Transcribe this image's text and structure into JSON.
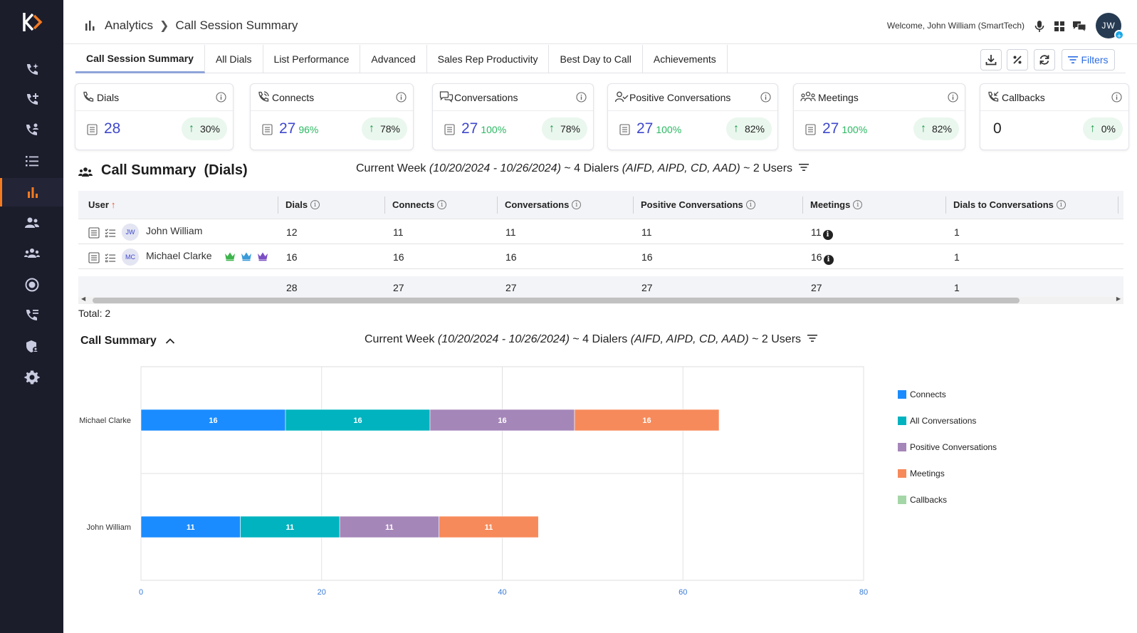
{
  "header": {
    "breadcrumb_root": "Analytics",
    "breadcrumb_page": "Call Session Summary",
    "welcome": "Welcome, John William (SmartTech)",
    "avatar_initials": "JW"
  },
  "tabs": [
    "Call Session Summary",
    "All Dials",
    "List Performance",
    "Advanced",
    "Sales Rep Productivity",
    "Best Day to Call",
    "Achievements"
  ],
  "toolbar": {
    "filters_label": "Filters"
  },
  "cards": [
    {
      "title": "Dials",
      "value": "28",
      "pct": "",
      "trend": "30%",
      "icon": "phone-icon"
    },
    {
      "title": "Connects",
      "value": "27",
      "pct": "96%",
      "trend": "78%",
      "icon": "phone-connect-icon"
    },
    {
      "title": "Conversations",
      "value": "27",
      "pct": "100%",
      "trend": "78%",
      "icon": "chat-bubbles-icon"
    },
    {
      "title": "Positive Conversations",
      "value": "27",
      "pct": "100%",
      "trend": "82%",
      "icon": "user-check-icon"
    },
    {
      "title": "Meetings",
      "value": "27",
      "pct": "100%",
      "trend": "82%",
      "icon": "meeting-group-icon"
    },
    {
      "title": "Callbacks",
      "value": "0",
      "pct": "",
      "trend": "0%",
      "icon": "callback-icon"
    }
  ],
  "summary": {
    "title": "Call Summary",
    "title_suffix": "(Dials)",
    "period_label": "Current Week",
    "period_range": "(10/20/2024 - 10/26/2024)",
    "dialers_prefix": "~ 4 Dialers",
    "dialers_list": "(AIFD, AIPD, CD, AAD)",
    "users": "~ 2 Users"
  },
  "table": {
    "columns": [
      "User",
      "Dials",
      "Connects",
      "Conversations",
      "Positive Conversations",
      "Meetings",
      "Dials to Conversations"
    ],
    "rows": [
      {
        "initials": "JW",
        "name": "John William",
        "dials": "12",
        "connects": "11",
        "conversations": "11",
        "positive": "11",
        "meetings": "11",
        "d2c": "1"
      },
      {
        "initials": "MC",
        "name": "Michael Clarke",
        "dials": "16",
        "connects": "16",
        "conversations": "16",
        "positive": "16",
        "meetings": "16",
        "d2c": "1"
      }
    ],
    "totals": {
      "dials": "28",
      "connects": "27",
      "conversations": "27",
      "positive": "27",
      "meetings": "27",
      "d2c": "1"
    },
    "total_label": "Total: 2"
  },
  "chart_section": {
    "title": "Call Summary",
    "period_label": "Current Week",
    "period_range": "(10/20/2024 - 10/26/2024)",
    "dialers_prefix": "~ 4 Dialers",
    "dialers_list": "(AIFD, AIPD, CD, AAD)",
    "users": "~ 2 Users"
  },
  "chart_data": {
    "type": "bar",
    "orientation": "horizontal",
    "stacked": true,
    "categories": [
      "Michael Clarke",
      "John William"
    ],
    "series": [
      {
        "name": "Connects",
        "values": [
          16,
          11
        ],
        "color": "#1a8cff"
      },
      {
        "name": "All Conversations",
        "values": [
          16,
          11
        ],
        "color": "#00b3bf"
      },
      {
        "name": "Positive Conversations",
        "values": [
          16,
          11
        ],
        "color": "#a586b9"
      },
      {
        "name": "Meetings",
        "values": [
          16,
          11
        ],
        "color": "#f78a5a"
      },
      {
        "name": "Callbacks",
        "values": [
          0,
          0
        ],
        "color": "#a5d6a7"
      }
    ],
    "xlim": [
      0,
      80
    ],
    "xticks": [
      0,
      20,
      40,
      60,
      80
    ],
    "grid": true,
    "legend_position": "right"
  },
  "colors": {
    "sidebar_bg": "#1c1d2b",
    "accent": "#f47b20",
    "value_blue": "#3f48cc",
    "trend_green": "#2bb862"
  }
}
